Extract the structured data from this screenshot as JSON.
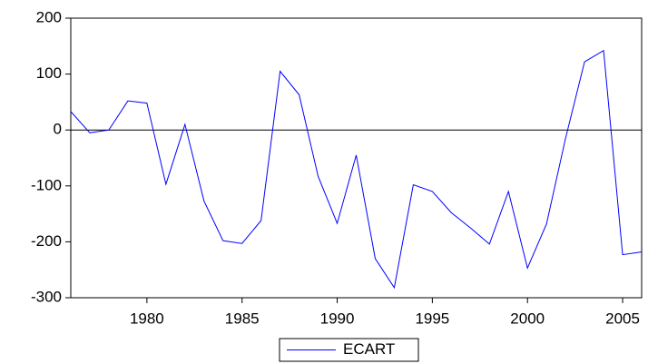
{
  "chart_data": {
    "type": "line",
    "x": [
      1976,
      1977,
      1978,
      1979,
      1980,
      1981,
      1982,
      1983,
      1984,
      1985,
      1986,
      1987,
      1988,
      1989,
      1990,
      1991,
      1992,
      1993,
      1994,
      1995,
      1996,
      1997,
      1998,
      1999,
      2000,
      2001,
      2002,
      2003,
      2004,
      2005,
      2006
    ],
    "series": [
      {
        "name": "ECART",
        "color": "#0000ff",
        "values": [
          33,
          -5,
          0,
          52,
          48,
          -97,
          10,
          -127,
          -198,
          -203,
          -162,
          105,
          63,
          -83,
          -167,
          -45,
          -230,
          -282,
          -98,
          -110,
          -148,
          -175,
          -204,
          -110,
          -247,
          -168,
          -15,
          122,
          142,
          -223,
          -218
        ]
      }
    ],
    "xlim": [
      1976,
      2006
    ],
    "xticks": [
      1980,
      1985,
      1990,
      1995,
      2000,
      2005
    ],
    "ylim": [
      -300,
      200
    ],
    "yticks": [
      -300,
      -200,
      -100,
      0,
      100,
      200
    ],
    "zero_line": true,
    "legend": "bottom"
  }
}
